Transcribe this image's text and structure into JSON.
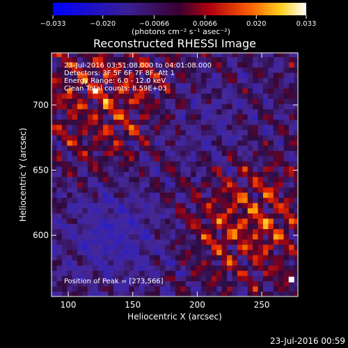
{
  "chart_data": {
    "type": "heatmap",
    "title": "Reconstructed RHESSI Image",
    "xlabel": "Heliocentric X (arcsec)",
    "ylabel": "Heliocentric Y (arcsec)",
    "xlim": [
      87,
      278
    ],
    "ylim": [
      553,
      740
    ],
    "xticks": [
      100,
      150,
      200,
      250
    ],
    "yticks": [
      600,
      650,
      700
    ],
    "colorbar": {
      "min": -0.033,
      "max": 0.033,
      "ticks": [
        -0.033,
        -0.02,
        -0.0066,
        0.0066,
        0.02,
        0.033
      ],
      "tick_labels": [
        "−0.033",
        "−0.020",
        "−0.0066",
        "0.0066",
        "0.020",
        "0.033"
      ],
      "unit_label": "(photons cm⁻² s⁻¹ asec⁻²)",
      "colors": [
        "#0000ff",
        "#3a2aa0",
        "#3a1f60",
        "#8a0030",
        "#e02000",
        "#ffa000",
        "#ffff60",
        "#ffffff"
      ]
    },
    "annotations": [
      "23-Jul-2016 03:51:08.000 to 04:01:08.000",
      "Detectors: 3F 5F 6F 7F 8F, Att 1",
      "Energy Range: 6.0 - 12.0 keV",
      "Clean    Total counts: 8.59E+03"
    ],
    "peak_label": "Position of Peak = [273,566]",
    "peak_position": [
      273,
      566
    ],
    "pixel_size_arcsec": 4
  },
  "footer_date": "23-Jul-2016 00:59"
}
